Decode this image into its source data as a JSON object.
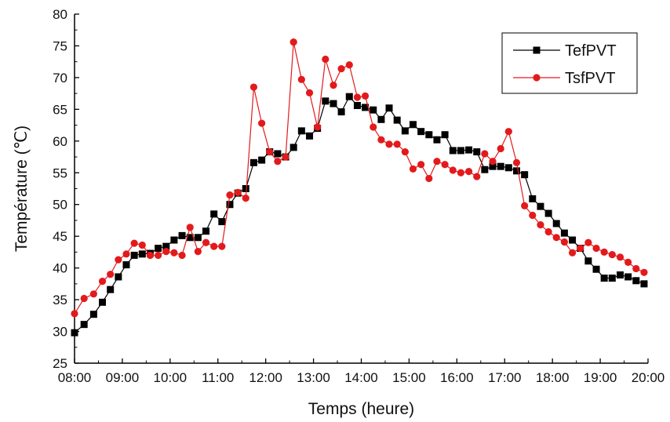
{
  "chart_data": {
    "type": "line",
    "xlabel": "Temps (heure)",
    "ylabel": "Température (℃)",
    "xlim": [
      0,
      12
    ],
    "ylim": [
      25,
      80
    ],
    "x_ticks": [
      "08:00",
      "09:00",
      "10:00",
      "11:00",
      "12:00",
      "13:00",
      "14:00",
      "15:00",
      "16:00",
      "17:00",
      "18:00",
      "19:00",
      "20:00"
    ],
    "y_ticks": [
      25,
      30,
      35,
      40,
      45,
      50,
      55,
      60,
      65,
      70,
      75,
      80
    ],
    "grid": false,
    "legend_position": "top-right",
    "series": [
      {
        "name": "TefPVT",
        "color": "#000000",
        "marker": "square",
        "x": [
          0,
          0.2,
          0.4,
          0.583,
          0.75,
          0.917,
          1.083,
          1.25,
          1.417,
          1.583,
          1.75,
          1.917,
          2.083,
          2.25,
          2.417,
          2.583,
          2.75,
          2.917,
          3.083,
          3.25,
          3.417,
          3.583,
          3.75,
          3.917,
          4.083,
          4.25,
          4.417,
          4.583,
          4.75,
          4.917,
          5.083,
          5.25,
          5.417,
          5.583,
          5.75,
          5.917,
          6.083,
          6.25,
          6.417,
          6.583,
          6.75,
          6.917,
          7.083,
          7.25,
          7.417,
          7.583,
          7.75,
          7.917,
          8.083,
          8.25,
          8.417,
          8.583,
          8.75,
          8.917,
          9.083,
          9.25,
          9.417,
          9.583,
          9.75,
          9.917,
          10.083,
          10.25,
          10.417,
          10.583,
          10.75,
          10.917,
          11.083,
          11.25,
          11.417,
          11.583,
          11.75,
          11.917
        ],
        "y": [
          29.8,
          31.1,
          32.7,
          34.6,
          36.6,
          38.6,
          40.5,
          42.0,
          42.2,
          42.3,
          43.1,
          43.4,
          44.4,
          45.1,
          44.8,
          44.8,
          45.8,
          48.5,
          47.3,
          50.0,
          51.8,
          52.5,
          56.6,
          57.0,
          58.3,
          58.0,
          57.5,
          59.0,
          61.6,
          60.8,
          62.0,
          66.3,
          65.9,
          64.6,
          67.0,
          65.6,
          65.3,
          64.9,
          63.4,
          65.2,
          63.3,
          61.6,
          62.6,
          61.5,
          61.0,
          60.2,
          61.0,
          58.5,
          58.5,
          58.6,
          58.3,
          55.5,
          56.0,
          56.0,
          55.8,
          55.3,
          54.7,
          50.9,
          49.7,
          48.6,
          47.0,
          45.5,
          44.4,
          43.1,
          41.1,
          39.8,
          38.4,
          38.4,
          38.9,
          38.6,
          38.0,
          37.5
        ]
      },
      {
        "name": "TsfPVT",
        "color": "#e31a1c",
        "marker": "circle",
        "x": [
          0,
          0.2,
          0.4,
          0.583,
          0.75,
          0.917,
          1.083,
          1.25,
          1.417,
          1.583,
          1.75,
          1.917,
          2.083,
          2.25,
          2.417,
          2.583,
          2.75,
          2.917,
          3.083,
          3.25,
          3.417,
          3.583,
          3.75,
          3.917,
          4.083,
          4.25,
          4.417,
          4.583,
          4.75,
          4.917,
          5.083,
          5.25,
          5.417,
          5.583,
          5.75,
          5.917,
          6.083,
          6.25,
          6.417,
          6.583,
          6.75,
          6.917,
          7.083,
          7.25,
          7.417,
          7.583,
          7.75,
          7.917,
          8.083,
          8.25,
          8.417,
          8.583,
          8.75,
          8.917,
          9.083,
          9.25,
          9.417,
          9.583,
          9.75,
          9.917,
          10.083,
          10.25,
          10.417,
          10.583,
          10.75,
          10.917,
          11.083,
          11.25,
          11.417,
          11.583,
          11.75,
          11.917
        ],
        "y": [
          32.8,
          35.2,
          35.9,
          37.9,
          39.0,
          41.3,
          42.2,
          43.9,
          43.6,
          42.0,
          42.0,
          42.6,
          42.4,
          42.0,
          46.4,
          42.6,
          44.0,
          43.4,
          43.4,
          51.5,
          51.9,
          51.0,
          68.5,
          62.8,
          58.3,
          56.8,
          57.5,
          75.6,
          69.7,
          67.6,
          62.2,
          72.9,
          68.8,
          71.4,
          72.0,
          66.9,
          67.1,
          62.2,
          60.2,
          59.5,
          59.5,
          58.3,
          55.6,
          56.3,
          54.1,
          56.8,
          56.3,
          55.4,
          55.0,
          55.2,
          54.4,
          58.0,
          56.8,
          58.8,
          61.5,
          56.6,
          49.8,
          48.3,
          46.8,
          45.7,
          44.8,
          44.1,
          42.4,
          43.1,
          44.0,
          43.1,
          42.5,
          42.1,
          41.7,
          40.9,
          39.9,
          39.3
        ]
      }
    ]
  }
}
